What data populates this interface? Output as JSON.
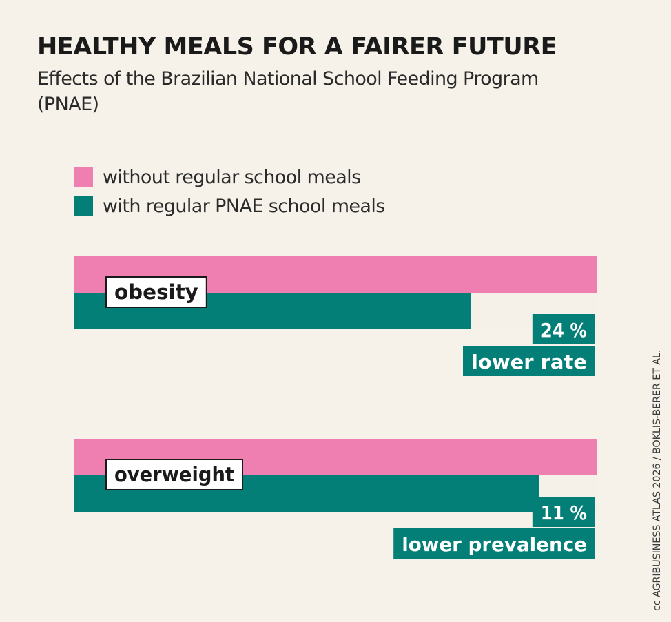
{
  "title": "HEALTHY MEALS FOR A FAIRER FUTURE",
  "subtitle": "Effects of the Brazilian National School Feeding Program (PNAE)",
  "credit": "cc AGRIBUSINESS ATLAS 2026 / BOKLIS-BERER ET AL.",
  "colors": {
    "background": "#f6f2ea",
    "without": "#ee7fb0",
    "with": "#037f78",
    "gap": "#f5f1e9"
  },
  "legend": [
    {
      "label": "without regular school meals",
      "color": "#ee7fb0"
    },
    {
      "label": "with regular PNAE school meals",
      "color": "#037f78"
    }
  ],
  "chart_data": {
    "type": "bar",
    "orientation": "horizontal",
    "categories": [
      "obesity",
      "overweight"
    ],
    "series": [
      {
        "name": "without regular school meals",
        "values": [
          100,
          100
        ]
      },
      {
        "name": "with regular PNAE school meals",
        "values": [
          76,
          89
        ]
      }
    ],
    "xlim": [
      0,
      100
    ],
    "annotations": [
      {
        "category": "obesity",
        "value": "24 %",
        "label": "lower rate"
      },
      {
        "category": "overweight",
        "value": "11 %",
        "label": "lower prevalence"
      }
    ]
  }
}
